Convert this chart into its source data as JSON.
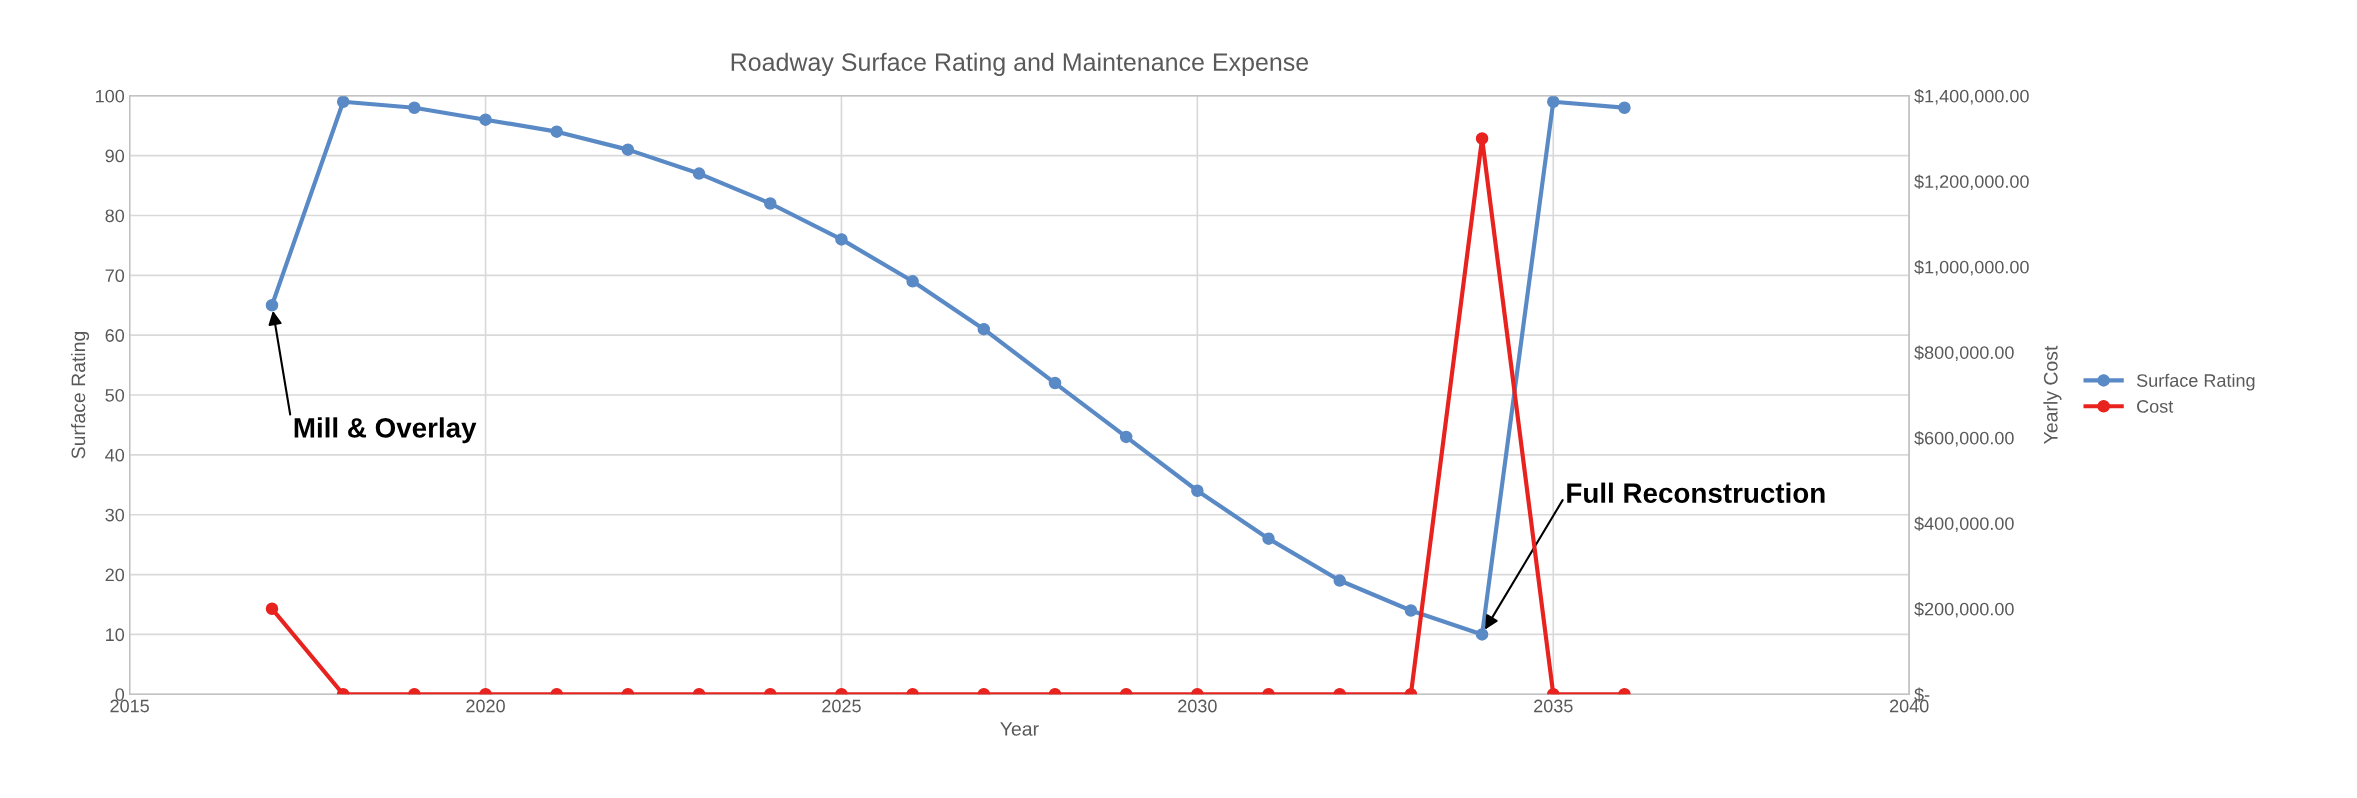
{
  "chart_data": {
    "type": "line",
    "title": "Roadway Surface Rating and Maintenance Expense",
    "xlabel": "Year",
    "ylabel": "Surface Rating",
    "y2label": "Yearly Cost",
    "x": [
      2017,
      2018,
      2019,
      2020,
      2021,
      2022,
      2023,
      2024,
      2025,
      2026,
      2027,
      2028,
      2029,
      2030,
      2031,
      2032,
      2033,
      2034,
      2035,
      2036
    ],
    "series": [
      {
        "name": "Surface Rating",
        "color": "#5a8ac6",
        "values": [
          65,
          99,
          98,
          96,
          94,
          91,
          87,
          82,
          76,
          69,
          61,
          52,
          43,
          34,
          26,
          19,
          14,
          10,
          99,
          98
        ]
      },
      {
        "name": "Cost",
        "color": "#e8231f",
        "axis": "y2",
        "values": [
          200000,
          0,
          0,
          0,
          0,
          0,
          0,
          0,
          0,
          0,
          0,
          0,
          0,
          0,
          0,
          0,
          0,
          1300000,
          0,
          0
        ]
      }
    ],
    "xlim": [
      2015,
      2040
    ],
    "xticks": [
      2015,
      2020,
      2025,
      2030,
      2035,
      2040
    ],
    "ylim": [
      0,
      100
    ],
    "yticks": [
      0,
      10,
      20,
      30,
      40,
      50,
      60,
      70,
      80,
      90,
      100
    ],
    "y2lim": [
      0,
      1400000
    ],
    "y2ticks": [
      {
        "value": 0,
        "label": "$-"
      },
      {
        "value": 200000,
        "label": "$200,000.00"
      },
      {
        "value": 400000,
        "label": "$400,000.00"
      },
      {
        "value": 600000,
        "label": "$600,000.00"
      },
      {
        "value": 800000,
        "label": "$800,000.00"
      },
      {
        "value": 1000000,
        "label": "$1,000,000.00"
      },
      {
        "value": 1200000,
        "label": "$1,200,000.00"
      },
      {
        "value": 1400000,
        "label": "$1,400,000.00"
      }
    ],
    "annotations": [
      {
        "text": "Mill & Overlay",
        "x": 2017,
        "y": 65
      },
      {
        "text": "Full Reconstruction",
        "x": 2034,
        "y": 10
      }
    ],
    "grid": true,
    "legend": "right",
    "marker": "circle",
    "line_style": "solid"
  }
}
